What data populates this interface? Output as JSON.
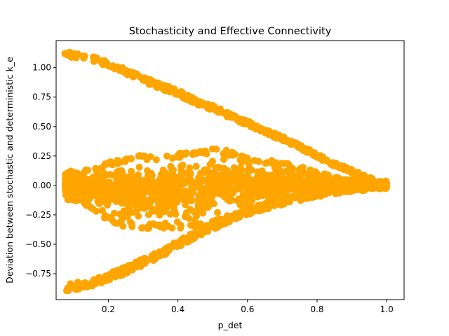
{
  "chart_data": {
    "type": "scatter",
    "title": "Stochasticity and Effective Connectivity",
    "xlabel": "p_det",
    "ylabel": "Deviation between stochastic and deterministic k_e",
    "xlim": [
      0.05,
      1.05
    ],
    "ylim": [
      -0.97,
      1.23
    ],
    "xticks": [
      0.2,
      0.4,
      0.6,
      0.8,
      1.0
    ],
    "xtick_labels": [
      "0.2",
      "0.4",
      "0.6",
      "0.8",
      "1.0"
    ],
    "yticks": [
      -0.75,
      -0.5,
      -0.25,
      0.0,
      0.25,
      0.5,
      0.75,
      1.0
    ],
    "ytick_labels": [
      "−0.75",
      "−0.50",
      "−0.25",
      "0.00",
      "0.25",
      "0.50",
      "0.75",
      "1.00"
    ],
    "grid": false,
    "color": "#ffa500",
    "series": [
      {
        "description": "upper band",
        "x": [
          0.08,
          0.1,
          0.12,
          0.15,
          0.18,
          0.2,
          0.25,
          0.3,
          0.35,
          0.4,
          0.45,
          0.5,
          0.55,
          0.6,
          0.65,
          0.7,
          0.75,
          0.8,
          0.85,
          0.9,
          0.95,
          1.0
        ],
        "y": [
          1.12,
          1.11,
          1.1,
          1.08,
          1.05,
          1.03,
          0.97,
          0.9,
          0.84,
          0.79,
          0.71,
          0.66,
          0.59,
          0.53,
          0.46,
          0.4,
          0.33,
          0.25,
          0.18,
          0.12,
          0.06,
          0.0
        ]
      },
      {
        "description": "lower band",
        "x": [
          0.08,
          0.1,
          0.12,
          0.15,
          0.18,
          0.2,
          0.25,
          0.3,
          0.35,
          0.4,
          0.45,
          0.5,
          0.55,
          0.6,
          0.65,
          0.7,
          0.75,
          0.8,
          0.85,
          0.9,
          0.95,
          1.0
        ],
        "y": [
          -0.87,
          -0.86,
          -0.85,
          -0.83,
          -0.8,
          -0.78,
          -0.72,
          -0.65,
          -0.58,
          -0.5,
          -0.42,
          -0.35,
          -0.28,
          -0.22,
          -0.18,
          -0.14,
          -0.1,
          -0.07,
          -0.05,
          -0.03,
          -0.02,
          0.0
        ]
      },
      {
        "description": "central cloud envelope upper",
        "x": [
          0.08,
          0.15,
          0.2,
          0.25,
          0.3,
          0.35,
          0.4,
          0.45,
          0.5,
          0.55,
          0.6,
          0.65,
          0.7,
          0.75,
          0.8,
          0.85,
          0.9,
          0.95,
          1.0
        ],
        "y": [
          0.12,
          0.14,
          0.2,
          0.24,
          0.26,
          0.25,
          0.27,
          0.3,
          0.33,
          0.29,
          0.24,
          0.22,
          0.2,
          0.17,
          0.13,
          0.09,
          0.06,
          0.03,
          0.0
        ]
      },
      {
        "description": "central cloud envelope lower",
        "x": [
          0.08,
          0.15,
          0.2,
          0.25,
          0.3,
          0.35,
          0.4,
          0.45,
          0.5,
          0.55,
          0.6,
          0.65,
          0.7,
          0.75,
          0.8,
          0.85,
          0.9,
          0.95,
          1.0
        ],
        "y": [
          -0.12,
          -0.2,
          -0.3,
          -0.36,
          -0.37,
          -0.36,
          -0.38,
          -0.37,
          -0.34,
          -0.28,
          -0.25,
          -0.22,
          -0.15,
          -0.13,
          -0.1,
          -0.07,
          -0.05,
          -0.03,
          0.0
        ]
      }
    ]
  }
}
